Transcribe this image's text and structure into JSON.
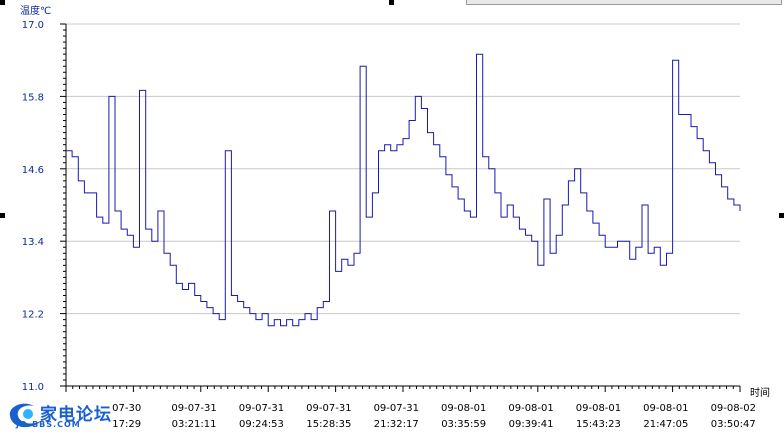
{
  "chart_data": {
    "type": "line",
    "ylabel": "温度℃",
    "xlabel": "时间",
    "ylim": [
      11.0,
      17.0
    ],
    "yticks": [
      "11.0",
      "12.2",
      "13.4",
      "14.6",
      "15.8",
      "17.0"
    ],
    "grid": true,
    "xticks": [
      {
        "date": "07-30",
        "time": "17:29"
      },
      {
        "date": "09-07-31",
        "time": "03:21:11"
      },
      {
        "date": "09-07-31",
        "time": "09:24:53"
      },
      {
        "date": "09-07-31",
        "time": "15:28:35"
      },
      {
        "date": "09-07-31",
        "time": "21:32:17"
      },
      {
        "date": "09-08-01",
        "time": "03:35:59"
      },
      {
        "date": "09-08-01",
        "time": "09:39:41"
      },
      {
        "date": "09-08-01",
        "time": "15:43:23"
      },
      {
        "date": "09-08-01",
        "time": "21:47:05"
      },
      {
        "date": "09-08-02",
        "time": "03:50:47"
      }
    ],
    "series": [
      {
        "color": "#1a1ab0",
        "values": [
          14.9,
          14.8,
          14.4,
          14.2,
          14.2,
          13.8,
          13.7,
          15.8,
          13.9,
          13.6,
          13.5,
          13.3,
          15.9,
          13.6,
          13.4,
          13.9,
          13.2,
          13.0,
          12.7,
          12.6,
          12.7,
          12.5,
          12.4,
          12.3,
          12.2,
          12.1,
          14.9,
          12.5,
          12.4,
          12.3,
          12.2,
          12.1,
          12.2,
          12.0,
          12.1,
          12.0,
          12.1,
          12.0,
          12.1,
          12.2,
          12.1,
          12.3,
          12.4,
          13.9,
          12.9,
          13.1,
          13.0,
          13.2,
          16.3,
          13.8,
          14.2,
          14.9,
          15.0,
          14.9,
          15.0,
          15.1,
          15.4,
          15.8,
          15.6,
          15.2,
          15.0,
          14.8,
          14.5,
          14.3,
          14.1,
          13.9,
          13.8,
          16.5,
          14.8,
          14.6,
          14.2,
          13.8,
          14.0,
          13.8,
          13.6,
          13.5,
          13.4,
          13.0,
          14.1,
          13.2,
          13.5,
          14.0,
          14.4,
          14.6,
          14.2,
          13.9,
          13.7,
          13.5,
          13.3,
          13.3,
          13.4,
          13.4,
          13.1,
          13.3,
          14.0,
          13.2,
          13.3,
          13.0,
          13.2,
          16.4,
          15.5,
          15.5,
          15.3,
          15.1,
          14.9,
          14.7,
          14.5,
          14.3,
          14.1,
          14.0,
          13.9
        ]
      }
    ]
  }
}
